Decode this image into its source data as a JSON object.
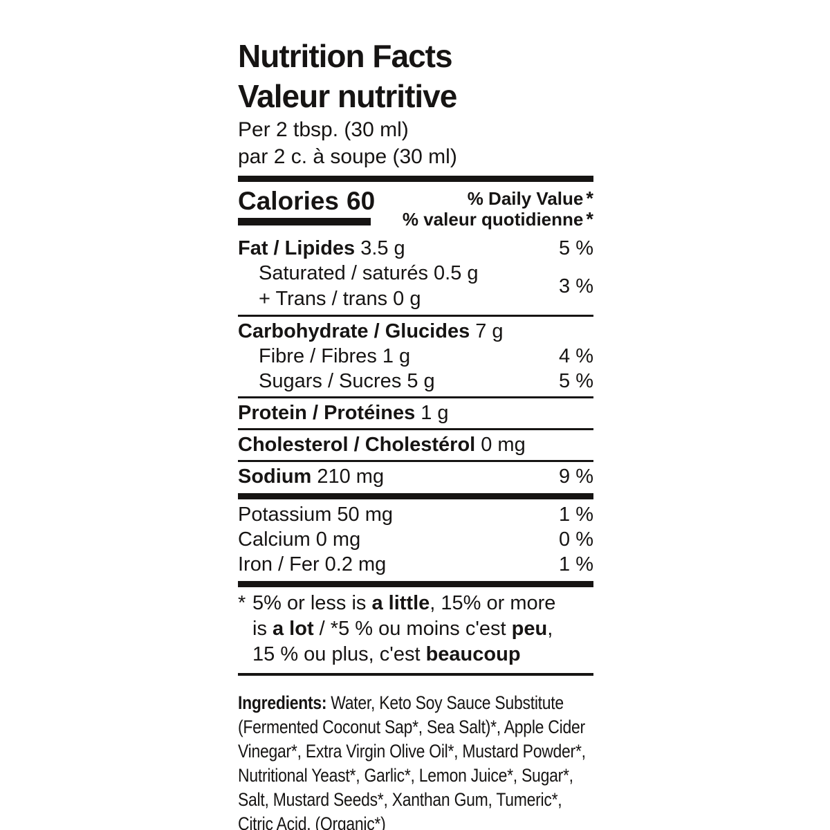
{
  "colors": {
    "text": "#161413",
    "background": "#ffffff"
  },
  "header": {
    "title_en": "Nutrition Facts",
    "title_fr": "Valeur nutritive",
    "serving_en": "Per 2 tbsp. (30 ml)",
    "serving_fr": "par 2 c. à soupe (30 ml)"
  },
  "calories": {
    "label": "Calories",
    "value": "60"
  },
  "daily_value": {
    "en": "% Daily Value",
    "fr": "% valeur quotidienne",
    "star": "*"
  },
  "nutrients": {
    "fat": {
      "label": "Fat / Lipides",
      "amount": "3.5 g",
      "dv": "5 %"
    },
    "saturated": {
      "label": "Saturated / saturés",
      "amount": "0.5 g"
    },
    "trans": {
      "label": "+ Trans / trans",
      "amount": "0 g"
    },
    "sat_trans_dv": "3 %",
    "carbohydrate": {
      "label": "Carbohydrate / Glucides",
      "amount": "7 g"
    },
    "fibre": {
      "label": "Fibre / Fibres",
      "amount": "1 g",
      "dv": "4 %"
    },
    "sugars": {
      "label": "Sugars / Sucres",
      "amount": "5 g",
      "dv": "5 %"
    },
    "protein": {
      "label": "Protein / Protéines",
      "amount": "1 g"
    },
    "cholesterol": {
      "label": "Cholesterol / Cholestérol",
      "amount": "0 mg"
    },
    "sodium": {
      "label": "Sodium",
      "amount": "210 mg",
      "dv": "9 %"
    },
    "potassium": {
      "label": "Potassium",
      "amount": "50 mg",
      "dv": "1 %"
    },
    "calcium": {
      "label": "Calcium",
      "amount": "0 mg",
      "dv": "0 %"
    },
    "iron": {
      "label": "Iron / Fer",
      "amount": "0.2 mg",
      "dv": "1 %"
    }
  },
  "footnote": {
    "line1_star": "*",
    "line1_a": "5% or less is ",
    "line1_b": "a little",
    "line1_c": ", 15% or more",
    "line2_a": "is ",
    "line2_b": "a lot",
    "line2_c": " / *5 % ou moins c'est ",
    "line2_d": "peu",
    "line2_e": ",",
    "line3_a": "15 % ou plus, c'est ",
    "line3_b": "beaucoup"
  },
  "ingredients": {
    "heading": "Ingredients:",
    "text": "Water, Keto Soy Sauce Substitute (Fermented Coconut Sap*, Sea Salt)*, Apple Cider Vinegar*, Extra Virgin Olive Oil*, Mustard Powder*, Nutritional Yeast*, Garlic*, Lemon Juice*, Sugar*, Salt, Mustard Seeds*, Xanthan Gum, Tumeric*, Citric Acid. (Organic*)"
  }
}
